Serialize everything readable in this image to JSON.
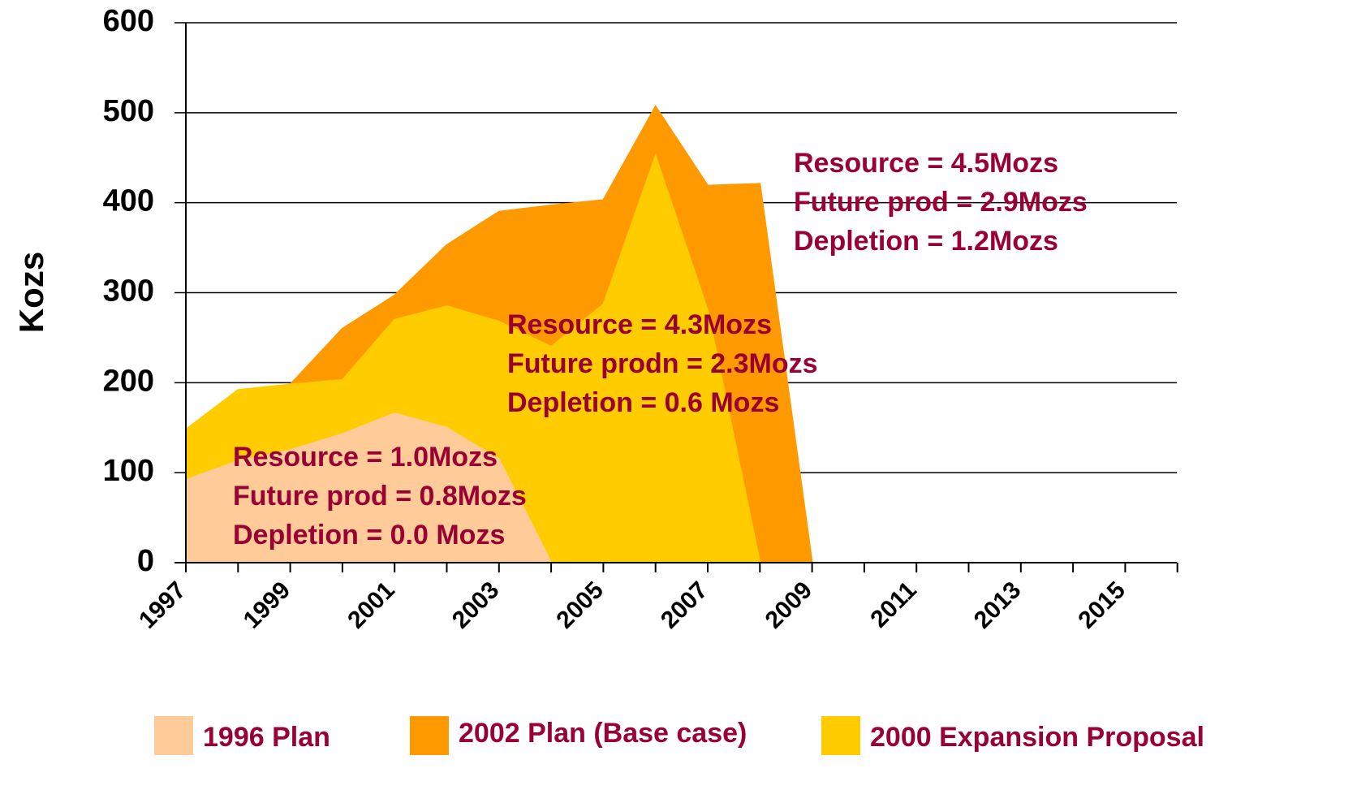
{
  "chart_data": {
    "type": "area",
    "y_label": "Kozs",
    "categories": [
      "1997",
      null,
      "1999",
      null,
      "2001",
      null,
      "2003",
      null,
      "2005",
      null,
      "2007",
      null,
      "2009",
      null,
      "2011",
      null,
      "2013",
      null,
      "2015",
      null
    ],
    "series": [
      {
        "name": "1996 Plan",
        "color": "#ffcc99",
        "values": [
          92,
          113,
          125,
          143,
          166,
          150,
          115,
          0,
          null,
          null,
          null,
          null,
          null,
          null,
          null,
          null,
          null,
          null,
          null,
          null
        ]
      },
      {
        "name": "2002 Plan (Base case)",
        "color": "#ff9900",
        "values": [
          null,
          null,
          198,
          260,
          297,
          353,
          390,
          397,
          403,
          507,
          419,
          421,
          0,
          0,
          0,
          0,
          0,
          0,
          0,
          0
        ]
      },
      {
        "name": "2000 Expansion Proposal",
        "color": "#ffcc00",
        "values": [
          148,
          192,
          198,
          203,
          270,
          285,
          268,
          240,
          287,
          452,
          280,
          0,
          null,
          null,
          null,
          null,
          null,
          null,
          null,
          null
        ]
      }
    ],
    "ylim": [
      0,
      600
    ],
    "yticks": [
      0,
      100,
      200,
      300,
      400,
      500,
      600
    ],
    "grid": true,
    "annotations": [
      [
        "Resource = 1.0Mozs",
        "Future prod = 0.8Mozs",
        "Depletion = 0.0 Mozs"
      ],
      [
        "Resource = 4.3Mozs",
        "Future prodn = 2.3Mozs",
        "Depletion = 0.6 Mozs"
      ],
      [
        "Resource = 4.5Mozs",
        "Future prod = 2.9Mozs",
        "Depletion = 1.2Mozs"
      ]
    ]
  }
}
